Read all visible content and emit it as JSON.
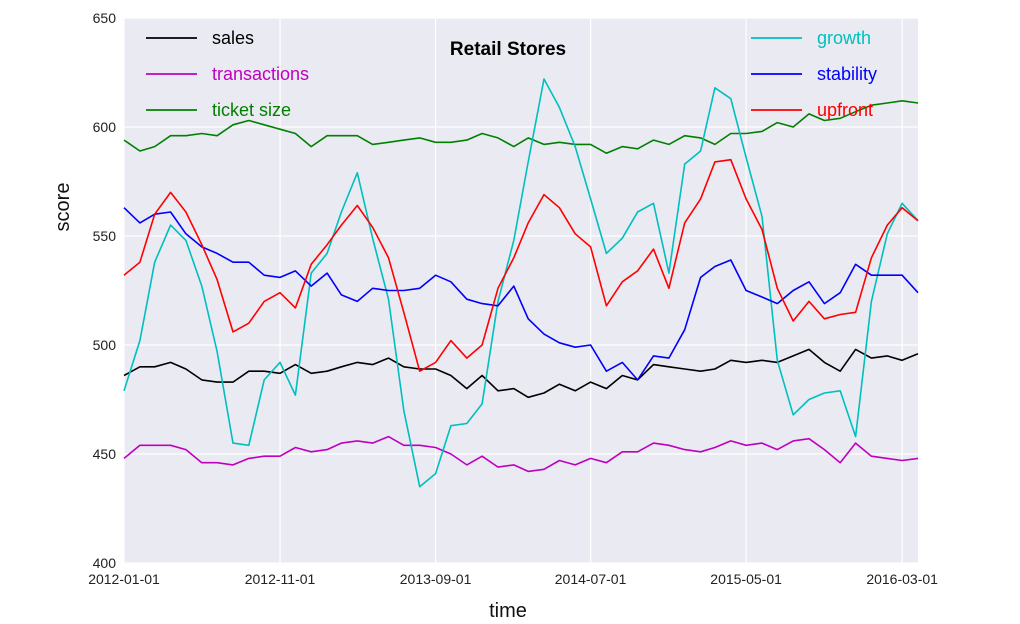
{
  "chart_data": {
    "type": "line",
    "title": "Retail Stores",
    "xlabel": "time",
    "ylabel": "score",
    "ylim": [
      400,
      650
    ],
    "yticks": [
      400,
      450,
      500,
      550,
      600,
      650
    ],
    "x_start": "2012-01-01",
    "x_end": "2016-04-01",
    "xticks": [
      "2012-01-01",
      "2012-11-01",
      "2013-09-01",
      "2014-07-01",
      "2015-05-01",
      "2016-03-01"
    ],
    "grid": true,
    "background": "#eaeaf2",
    "legend_left": [
      "sales",
      "transactions",
      "ticket size"
    ],
    "legend_right": [
      "growth",
      "stability",
      "upfront"
    ],
    "series": [
      {
        "name": "sales",
        "color": "#000000",
        "values": [
          486,
          490,
          490,
          492,
          489,
          484,
          483,
          483,
          488,
          488,
          487,
          491,
          487,
          488,
          490,
          492,
          491,
          494,
          490,
          489,
          489,
          486,
          480,
          486,
          479,
          480,
          476,
          478,
          482,
          479,
          483,
          480,
          486,
          484,
          491,
          490,
          489,
          488,
          489,
          493,
          492,
          493,
          492,
          495,
          498,
          492,
          488,
          498,
          494,
          495,
          493,
          496
        ]
      },
      {
        "name": "transactions",
        "color": "#bf00bf",
        "values": [
          448,
          454,
          454,
          454,
          452,
          446,
          446,
          445,
          448,
          449,
          449,
          453,
          451,
          452,
          455,
          456,
          455,
          458,
          454,
          454,
          453,
          450,
          445,
          449,
          444,
          445,
          442,
          443,
          447,
          445,
          448,
          446,
          451,
          451,
          455,
          454,
          452,
          451,
          453,
          456,
          454,
          455,
          452,
          456,
          457,
          452,
          446,
          455,
          449,
          448,
          447,
          448
        ]
      },
      {
        "name": "ticket size",
        "color": "#008000",
        "values": [
          594,
          589,
          591,
          596,
          596,
          597,
          596,
          601,
          603,
          601,
          599,
          597,
          591,
          596,
          596,
          596,
          592,
          593,
          594,
          595,
          593,
          593,
          594,
          597,
          595,
          591,
          595,
          592,
          593,
          592,
          592,
          588,
          591,
          590,
          594,
          592,
          596,
          595,
          592,
          597,
          597,
          598,
          602,
          600,
          606,
          603,
          604,
          607,
          610,
          611,
          612,
          611
        ]
      },
      {
        "name": "growth",
        "color": "#00bfbf",
        "values": [
          479,
          502,
          538,
          555,
          548,
          527,
          497,
          455,
          454,
          484,
          492,
          477,
          533,
          542,
          561,
          579,
          549,
          521,
          470,
          435,
          441,
          463,
          464,
          473,
          520,
          548,
          584,
          622,
          609,
          591,
          567,
          542,
          549,
          561,
          565,
          533,
          583,
          589,
          618,
          613,
          586,
          559,
          493,
          468,
          475,
          478,
          479,
          458,
          520,
          551,
          565,
          557
        ]
      },
      {
        "name": "stability",
        "color": "#0000ff",
        "values": [
          563,
          556,
          560,
          561,
          551,
          545,
          542,
          538,
          538,
          532,
          531,
          534,
          527,
          533,
          523,
          520,
          526,
          525,
          525,
          526,
          532,
          529,
          521,
          519,
          518,
          527,
          512,
          505,
          501,
          499,
          500,
          488,
          492,
          484,
          495,
          494,
          507,
          531,
          536,
          539,
          525,
          522,
          519,
          525,
          529,
          519,
          524,
          537,
          532,
          532,
          532,
          524
        ]
      },
      {
        "name": "upfront",
        "color": "#ff0000",
        "values": [
          532,
          538,
          560,
          570,
          561,
          546,
          530,
          506,
          510,
          520,
          524,
          517,
          537,
          546,
          555,
          564,
          554,
          540,
          515,
          488,
          492,
          502,
          494,
          500,
          526,
          540,
          556,
          569,
          563,
          551,
          545,
          518,
          529,
          534,
          544,
          526,
          556,
          567,
          584,
          585,
          567,
          553,
          526,
          511,
          520,
          512,
          514,
          515,
          540,
          555,
          563,
          557
        ]
      }
    ]
  }
}
